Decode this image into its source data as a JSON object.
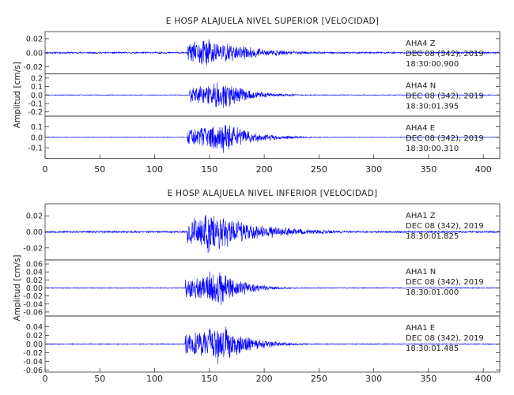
{
  "chart_data": [
    {
      "type": "line",
      "title": "E HOSP ALAJUELA NIVEL SUPERIOR [VELOCIDAD]",
      "ylabel": "Amplitud [cm/s]",
      "xlabel": "",
      "xlim": [
        0,
        415
      ],
      "xticks": [
        0,
        50,
        100,
        150,
        200,
        250,
        300,
        350,
        400
      ],
      "grid": false,
      "line_color": "#0000ff",
      "panels": [
        {
          "station": "AHA4",
          "component": "Z",
          "date": "DEC 08 (342), 2019",
          "time": "18:30:00.900",
          "ylim": [
            -0.03,
            0.03
          ],
          "yticks": [
            0.02,
            0.0,
            -0.02
          ],
          "ytick_labels": [
            "0.02",
            "0.00",
            "-0.02"
          ],
          "series": {
            "seed": 11,
            "noise": 0.0015,
            "onset": 130,
            "peak": 0.024,
            "peak_time": 150,
            "tail": 230,
            "end": 415
          }
        },
        {
          "station": "AHA4",
          "component": "N",
          "date": "DEC 08 (342), 2019",
          "time": "18:30:01.395",
          "ylim": [
            -0.25,
            0.25
          ],
          "yticks": [
            0.2,
            0.1,
            0.0,
            -0.1,
            -0.2
          ],
          "ytick_labels": [
            "0.2",
            "0.1",
            "0.0",
            "-0.1",
            "-0.2"
          ],
          "series": {
            "seed": 23,
            "noise": 0.005,
            "onset": 132,
            "peak": 0.17,
            "peak_time": 165,
            "tail": 215,
            "end": 415
          }
        },
        {
          "station": "AHA4",
          "component": "E",
          "date": "DEC 08 (342), 2019",
          "time": "18:30:00.310",
          "ylim": [
            -0.2,
            0.2
          ],
          "yticks": [
            0.1,
            0.0,
            -0.1
          ],
          "ytick_labels": [
            "0.1",
            "0.0",
            "-0.1"
          ],
          "series": {
            "seed": 37,
            "noise": 0.004,
            "onset": 130,
            "peak": 0.16,
            "peak_time": 165,
            "tail": 220,
            "end": 415
          }
        }
      ]
    },
    {
      "type": "line",
      "title": "E HOSP ALAJUELA NIVEL INFERIOR [VELOCIDAD]",
      "ylabel": "Amplitud [cm/s]",
      "xlabel": "",
      "xlim": [
        0,
        415
      ],
      "xticks": [
        0,
        50,
        100,
        150,
        200,
        250,
        300,
        350,
        400
      ],
      "grid": false,
      "line_color": "#0000ff",
      "panels": [
        {
          "station": "AHA1",
          "component": "Z",
          "date": "DEC 08 (342), 2019",
          "time": "18:30:01.825",
          "ylim": [
            -0.035,
            0.035
          ],
          "yticks": [
            0.02,
            0.0,
            -0.02
          ],
          "ytick_labels": [
            "0.02",
            "0.00",
            "-0.02"
          ],
          "series": {
            "seed": 53,
            "noise": 0.0015,
            "onset": 130,
            "peak": 0.03,
            "peak_time": 150,
            "tail": 245,
            "end": 415
          }
        },
        {
          "station": "AHA1",
          "component": "N",
          "date": "DEC 08 (342), 2019",
          "time": "18:30:01.000",
          "ylim": [
            -0.07,
            0.07
          ],
          "yticks": [
            0.06,
            0.04,
            0.02,
            0.0,
            -0.02,
            -0.04,
            -0.06
          ],
          "ytick_labels": [
            "0.06",
            "0.04",
            "0.02",
            "0.00",
            "-0.02",
            "-0.04",
            "-0.06"
          ],
          "series": {
            "seed": 71,
            "noise": 0.0015,
            "onset": 128,
            "peak": 0.05,
            "peak_time": 162,
            "tail": 205,
            "end": 415
          }
        },
        {
          "station": "AHA1",
          "component": "E",
          "date": "DEC 08 (342), 2019",
          "time": "18:30:01.485",
          "ylim": [
            -0.065,
            0.065
          ],
          "yticks": [
            0.04,
            0.02,
            0.0,
            -0.02,
            -0.04,
            -0.06
          ],
          "ytick_labels": [
            "0.04",
            "0.02",
            "0.00",
            "-0.02",
            "-0.04",
            "-0.06"
          ],
          "series": {
            "seed": 89,
            "noise": 0.0015,
            "onset": 128,
            "peak": 0.05,
            "peak_time": 163,
            "tail": 215,
            "end": 415
          }
        }
      ]
    }
  ]
}
